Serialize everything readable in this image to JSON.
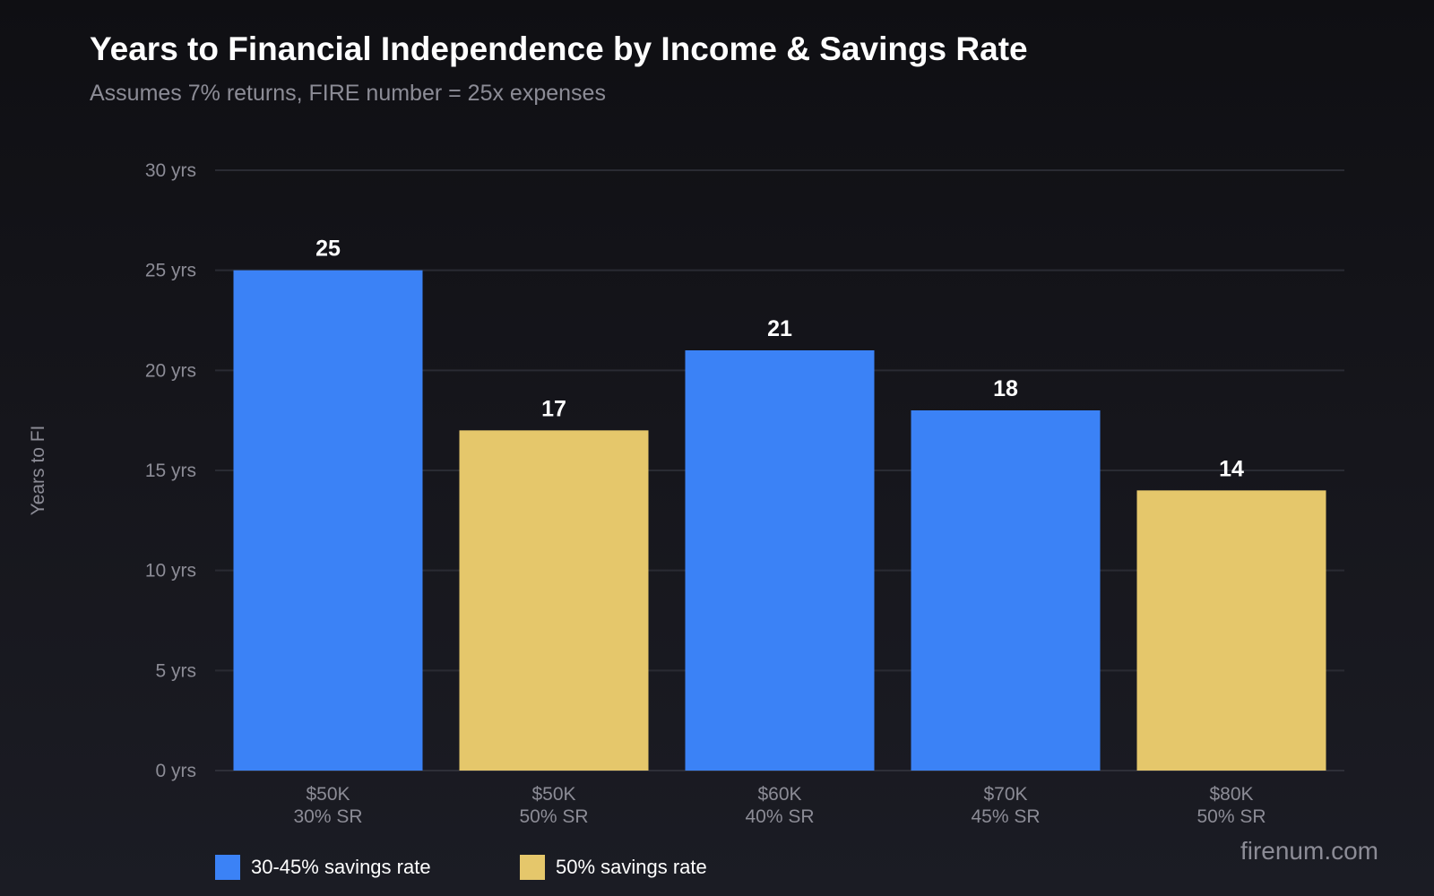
{
  "chart_data": {
    "type": "bar",
    "title": "Years to Financial Independence by Income & Savings Rate",
    "subtitle": "Assumes 7% returns, FIRE number = 25x expenses",
    "ylabel": "Years to FI",
    "xlabel": "",
    "ylim": [
      0,
      30
    ],
    "yticks": [
      0,
      5,
      10,
      15,
      20,
      25,
      30
    ],
    "ytick_labels": [
      "0 yrs",
      "5 yrs",
      "10 yrs",
      "15 yrs",
      "20 yrs",
      "25 yrs",
      "30 yrs"
    ],
    "grid": true,
    "categories": [
      {
        "income": "$50K",
        "rate": "30% SR"
      },
      {
        "income": "$50K",
        "rate": "50% SR"
      },
      {
        "income": "$60K",
        "rate": "40% SR"
      },
      {
        "income": "$70K",
        "rate": "45% SR"
      },
      {
        "income": "$80K",
        "rate": "50% SR"
      }
    ],
    "values": [
      25,
      17,
      21,
      18,
      14
    ],
    "value_labels": [
      "25",
      "17",
      "21",
      "18",
      "14"
    ],
    "groups": [
      0,
      1,
      0,
      0,
      1
    ],
    "legend_position": "bottom-left",
    "legend": [
      {
        "name": "30-45% savings rate",
        "color": "#3b82f6"
      },
      {
        "name": "50% savings rate",
        "color": "#e5c76b"
      }
    ]
  },
  "watermark": "firenum.com"
}
